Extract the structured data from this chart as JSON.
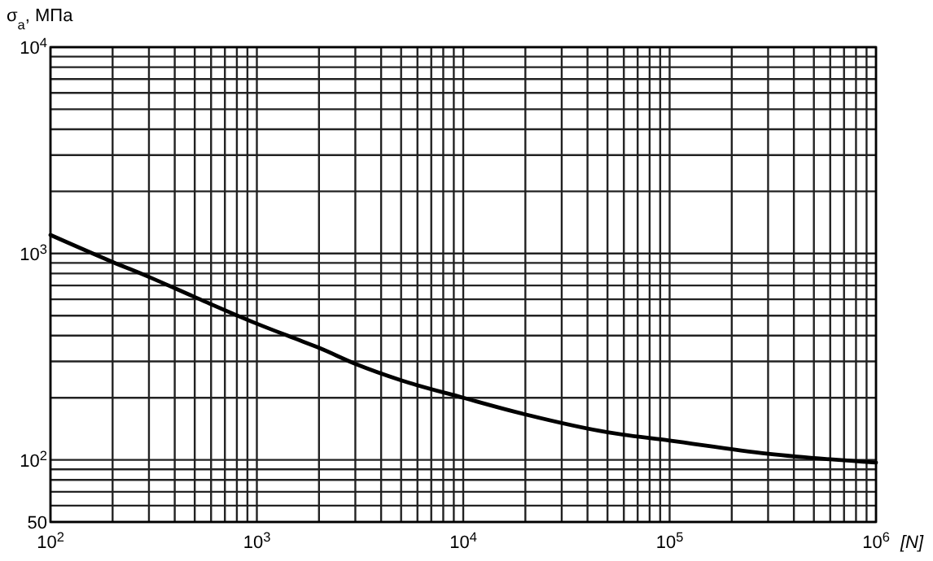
{
  "chart_data": {
    "type": "line",
    "ylabel": "σ$_{a}$, МПа",
    "xlabel": "[N]",
    "log": "xy",
    "grid": true,
    "marker": "none",
    "line_style": "solid",
    "xlim": [
      100,
      1000000
    ],
    "ylim": [
      50,
      10000
    ],
    "xticks": [
      {
        "value": 100,
        "label": "10$^{2}$"
      },
      {
        "value": 200,
        "label": null
      },
      {
        "value": 300,
        "label": null
      },
      {
        "value": 400,
        "label": null
      },
      {
        "value": 500,
        "label": null
      },
      {
        "value": 600,
        "label": null
      },
      {
        "value": 700,
        "label": null
      },
      {
        "value": 800,
        "label": null
      },
      {
        "value": 900,
        "label": null
      },
      {
        "value": 1000,
        "label": "10$^{3}$"
      },
      {
        "value": 2000,
        "label": null
      },
      {
        "value": 3000,
        "label": null
      },
      {
        "value": 4000,
        "label": null
      },
      {
        "value": 5000,
        "label": null
      },
      {
        "value": 6000,
        "label": null
      },
      {
        "value": 7000,
        "label": null
      },
      {
        "value": 8000,
        "label": null
      },
      {
        "value": 9000,
        "label": null
      },
      {
        "value": 10000,
        "label": "10$^{4}$"
      },
      {
        "value": 20000,
        "label": null
      },
      {
        "value": 30000,
        "label": null
      },
      {
        "value": 40000,
        "label": null
      },
      {
        "value": 50000,
        "label": null
      },
      {
        "value": 60000,
        "label": null
      },
      {
        "value": 70000,
        "label": null
      },
      {
        "value": 80000,
        "label": null
      },
      {
        "value": 90000,
        "label": null
      },
      {
        "value": 100000,
        "label": "10$^{5}$"
      },
      {
        "value": 200000,
        "label": null
      },
      {
        "value": 300000,
        "label": null
      },
      {
        "value": 400000,
        "label": null
      },
      {
        "value": 500000,
        "label": null
      },
      {
        "value": 600000,
        "label": null
      },
      {
        "value": 700000,
        "label": null
      },
      {
        "value": 800000,
        "label": null
      },
      {
        "value": 900000,
        "label": null
      },
      {
        "value": 1000000,
        "label": "10$^{6}$"
      }
    ],
    "yticks": [
      50,
      {
        "value": 60,
        "label": null
      },
      {
        "value": 70,
        "label": null
      },
      {
        "value": 80,
        "label": null
      },
      {
        "value": 90,
        "label": null
      },
      {
        "value": 100,
        "label": "10$^{2}$"
      },
      {
        "value": 200,
        "label": null
      },
      {
        "value": 300,
        "label": null
      },
      {
        "value": 400,
        "label": null
      },
      {
        "value": 500,
        "label": null
      },
      {
        "value": 600,
        "label": null
      },
      {
        "value": 700,
        "label": null
      },
      {
        "value": 800,
        "label": null
      },
      {
        "value": 900,
        "label": null
      },
      {
        "value": 1000,
        "label": "10$^{3}$"
      },
      {
        "value": 2000,
        "label": null
      },
      {
        "value": 3000,
        "label": null
      },
      {
        "value": 4000,
        "label": null
      },
      {
        "value": 5000,
        "label": null
      },
      {
        "value": 6000,
        "label": null
      },
      {
        "value": 7000,
        "label": null
      },
      {
        "value": 8000,
        "label": null
      },
      {
        "value": 9000,
        "label": null
      },
      {
        "value": 10000,
        "label": "10$^{4}$"
      }
    ],
    "series": [
      {
        "color": "#000000",
        "x": [
          100,
          200,
          300,
          500,
          1000,
          1500,
          2000,
          3000,
          5000,
          10000,
          20000,
          50000,
          100000,
          300000,
          1000000
        ],
        "values": [
          1230,
          910,
          770,
          615,
          457,
          390,
          349,
          292,
          243,
          200,
          166,
          136,
          124,
          107,
          97
        ]
      }
    ]
  }
}
